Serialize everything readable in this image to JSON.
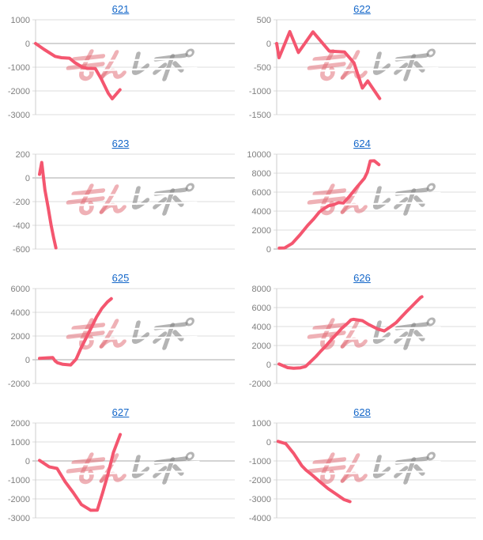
{
  "page": {
    "background": "#ffffff"
  },
  "colors": {
    "accent_line": "#f4566f",
    "link": "#1467c9",
    "grid": "#dcdcdc",
    "zero_line": "#a8a8a8",
    "axis": "#cccccc",
    "tick_label": "#7f7f7f",
    "watermark_pink": "rgba(224,100,110,0.5)",
    "watermark_gray": "rgba(130,130,130,0.6)"
  },
  "watermark": {
    "name": "minrepo-logo",
    "text": "みんレポ"
  },
  "chart_data": [
    {
      "type": "line",
      "title": "621",
      "xlabel": "",
      "ylabel": "",
      "ylim": [
        -3000,
        1000
      ],
      "yticks": [
        1000,
        0,
        -1000,
        -2000,
        -3000
      ],
      "grid": true,
      "legend": "none",
      "points": [
        [
          0.0,
          0
        ],
        [
          0.043,
          -250
        ],
        [
          0.098,
          -545
        ],
        [
          0.13,
          -600
        ],
        [
          0.17,
          -620
        ],
        [
          0.196,
          -800
        ],
        [
          0.235,
          -1000
        ],
        [
          0.26,
          -1050
        ],
        [
          0.3,
          -1060
        ],
        [
          0.33,
          -1500
        ],
        [
          0.365,
          -2100
        ],
        [
          0.385,
          -2330
        ],
        [
          0.424,
          -1950
        ]
      ]
    },
    {
      "type": "line",
      "title": "622",
      "xlabel": "",
      "ylabel": "",
      "ylim": [
        -1500,
        500
      ],
      "yticks": [
        500,
        0,
        -500,
        -1000,
        -1500
      ],
      "grid": true,
      "legend": "none",
      "points": [
        [
          0.0,
          0
        ],
        [
          0.012,
          -300
        ],
        [
          0.066,
          250
        ],
        [
          0.109,
          -190
        ],
        [
          0.182,
          245
        ],
        [
          0.264,
          -160
        ],
        [
          0.341,
          -180
        ],
        [
          0.388,
          -410
        ],
        [
          0.43,
          -940
        ],
        [
          0.457,
          -790
        ],
        [
          0.517,
          -1160
        ]
      ]
    },
    {
      "type": "line",
      "title": "623",
      "xlabel": "",
      "ylabel": "",
      "ylim": [
        -600,
        200
      ],
      "yticks": [
        200,
        0,
        -200,
        -400,
        -600
      ],
      "grid": true,
      "legend": "none",
      "points": [
        [
          0.02,
          30
        ],
        [
          0.031,
          130
        ],
        [
          0.047,
          -100
        ],
        [
          0.063,
          -250
        ],
        [
          0.078,
          -400
        ],
        [
          0.09,
          -500
        ],
        [
          0.102,
          -590
        ]
      ]
    },
    {
      "type": "line",
      "title": "624",
      "xlabel": "",
      "ylabel": "",
      "ylim": [
        0,
        10000
      ],
      "yticks": [
        10000,
        8000,
        6000,
        4000,
        2000,
        0
      ],
      "grid": true,
      "legend": "none",
      "points": [
        [
          0.013,
          100
        ],
        [
          0.04,
          120
        ],
        [
          0.078,
          600
        ],
        [
          0.117,
          1500
        ],
        [
          0.156,
          2500
        ],
        [
          0.187,
          3200
        ],
        [
          0.214,
          3900
        ],
        [
          0.233,
          4200
        ],
        [
          0.26,
          4560
        ],
        [
          0.284,
          4670
        ],
        [
          0.311,
          4900
        ],
        [
          0.335,
          4850
        ],
        [
          0.362,
          5465
        ],
        [
          0.4,
          6460
        ],
        [
          0.44,
          7450
        ],
        [
          0.455,
          8100
        ],
        [
          0.47,
          9280
        ],
        [
          0.49,
          9300
        ],
        [
          0.513,
          8900
        ]
      ]
    },
    {
      "type": "line",
      "title": "625",
      "xlabel": "",
      "ylabel": "",
      "ylim": [
        -2000,
        6000
      ],
      "yticks": [
        6000,
        4000,
        2000,
        0,
        -2000
      ],
      "grid": true,
      "legend": "none",
      "points": [
        [
          0.02,
          110
        ],
        [
          0.059,
          160
        ],
        [
          0.086,
          180
        ],
        [
          0.098,
          -100
        ],
        [
          0.11,
          -250
        ],
        [
          0.137,
          -390
        ],
        [
          0.176,
          -440
        ],
        [
          0.204,
          60
        ],
        [
          0.227,
          950
        ],
        [
          0.255,
          1890
        ],
        [
          0.282,
          2780
        ],
        [
          0.306,
          3600
        ],
        [
          0.333,
          4330
        ],
        [
          0.361,
          4880
        ],
        [
          0.38,
          5150
        ]
      ]
    },
    {
      "type": "line",
      "title": "626",
      "xlabel": "",
      "ylabel": "",
      "ylim": [
        -2000,
        8000
      ],
      "yticks": [
        8000,
        6000,
        4000,
        2000,
        0,
        -2000
      ],
      "grid": true,
      "legend": "none",
      "points": [
        [
          0.012,
          50
        ],
        [
          0.055,
          -330
        ],
        [
          0.085,
          -400
        ],
        [
          0.12,
          -350
        ],
        [
          0.145,
          -220
        ],
        [
          0.17,
          280
        ],
        [
          0.197,
          830
        ],
        [
          0.223,
          1440
        ],
        [
          0.249,
          1990
        ],
        [
          0.275,
          2630
        ],
        [
          0.3,
          3180
        ],
        [
          0.327,
          3815
        ],
        [
          0.353,
          4290
        ],
        [
          0.373,
          4700
        ],
        [
          0.385,
          4755
        ],
        [
          0.405,
          4700
        ],
        [
          0.43,
          4615
        ],
        [
          0.456,
          4285
        ],
        [
          0.482,
          4000
        ],
        [
          0.508,
          3730
        ],
        [
          0.54,
          3535
        ],
        [
          0.573,
          4000
        ],
        [
          0.6,
          4420
        ],
        [
          0.625,
          4975
        ],
        [
          0.65,
          5530
        ],
        [
          0.676,
          6080
        ],
        [
          0.702,
          6635
        ],
        [
          0.722,
          7050
        ],
        [
          0.729,
          7130
        ]
      ]
    },
    {
      "type": "line",
      "title": "627",
      "xlabel": "",
      "ylabel": "",
      "ylim": [
        -3000,
        2000
      ],
      "yticks": [
        2000,
        1000,
        0,
        -1000,
        -2000,
        -3000
      ],
      "grid": true,
      "legend": "none",
      "points": [
        [
          0.02,
          30
        ],
        [
          0.068,
          -310
        ],
        [
          0.108,
          -395
        ],
        [
          0.149,
          -1100
        ],
        [
          0.189,
          -1665
        ],
        [
          0.23,
          -2300
        ],
        [
          0.277,
          -2600
        ],
        [
          0.31,
          -2590
        ],
        [
          0.337,
          -1665
        ],
        [
          0.364,
          -680
        ],
        [
          0.391,
          450
        ],
        [
          0.425,
          1390
        ]
      ]
    },
    {
      "type": "line",
      "title": "628",
      "xlabel": "",
      "ylabel": "",
      "ylim": [
        -4000,
        1000
      ],
      "yticks": [
        1000,
        0,
        -1000,
        -2000,
        -3000,
        -4000
      ],
      "grid": true,
      "legend": "none",
      "points": [
        [
          0.007,
          30
        ],
        [
          0.046,
          -90
        ],
        [
          0.086,
          -615
        ],
        [
          0.126,
          -1255
        ],
        [
          0.146,
          -1470
        ],
        [
          0.179,
          -1750
        ],
        [
          0.218,
          -2105
        ],
        [
          0.258,
          -2460
        ],
        [
          0.298,
          -2745
        ],
        [
          0.337,
          -3030
        ],
        [
          0.368,
          -3145
        ]
      ]
    }
  ]
}
